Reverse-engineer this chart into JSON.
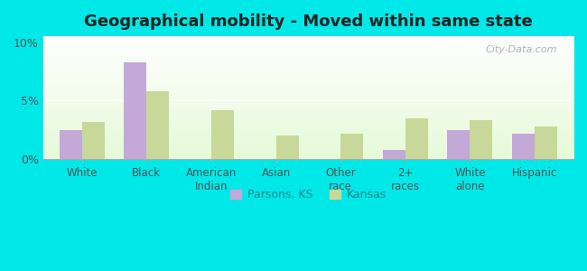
{
  "title": "Geographical mobility - Moved within same state",
  "categories": [
    "White",
    "Black",
    "American\nIndian",
    "Asian",
    "Other\nrace",
    "2+\nraces",
    "White\nalone",
    "Hispanic"
  ],
  "parsons_values": [
    2.5,
    8.3,
    0.0,
    0.0,
    0.0,
    0.8,
    2.5,
    2.2
  ],
  "kansas_values": [
    3.2,
    5.8,
    4.2,
    2.0,
    2.2,
    3.5,
    3.3,
    2.8
  ],
  "parsons_color": "#c4a8d8",
  "kansas_color": "#c8d898",
  "outer_background": "#00e8e8",
  "ylim": [
    0,
    10.5
  ],
  "yticks": [
    0,
    5,
    10
  ],
  "ytick_labels": [
    "0%",
    "5%",
    "10%"
  ],
  "bar_width": 0.35,
  "legend_parsons": "Parsons, KS",
  "legend_kansas": "Kansas",
  "watermark": "City-Data.com"
}
